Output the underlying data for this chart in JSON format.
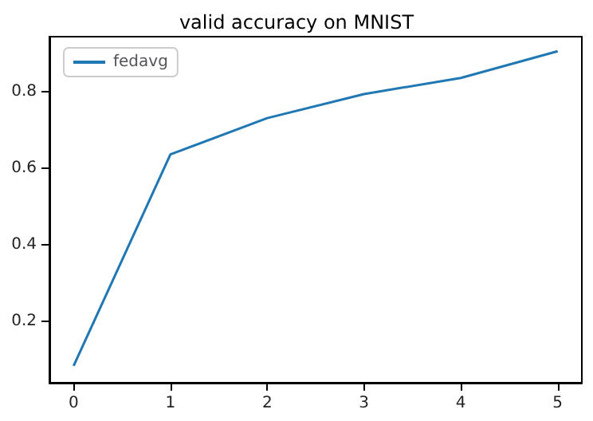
{
  "chart_data": {
    "type": "line",
    "title": "valid accuracy on MNIST",
    "x": [
      0,
      1,
      2,
      3,
      4,
      5
    ],
    "series": [
      {
        "name": "fedavg",
        "color": "#1f77b4",
        "values": [
          0.083,
          0.636,
          0.731,
          0.794,
          0.836,
          0.906
        ]
      }
    ],
    "xlim": [
      -0.25,
      5.25
    ],
    "xticks": [
      0,
      1,
      2,
      3,
      4,
      5
    ],
    "ylim": [
      0.039,
      0.944
    ],
    "yticks": [
      0.2,
      0.4,
      0.6,
      0.8
    ],
    "grid": false,
    "legend": "top left",
    "marker": "none",
    "line_style": "solid"
  }
}
